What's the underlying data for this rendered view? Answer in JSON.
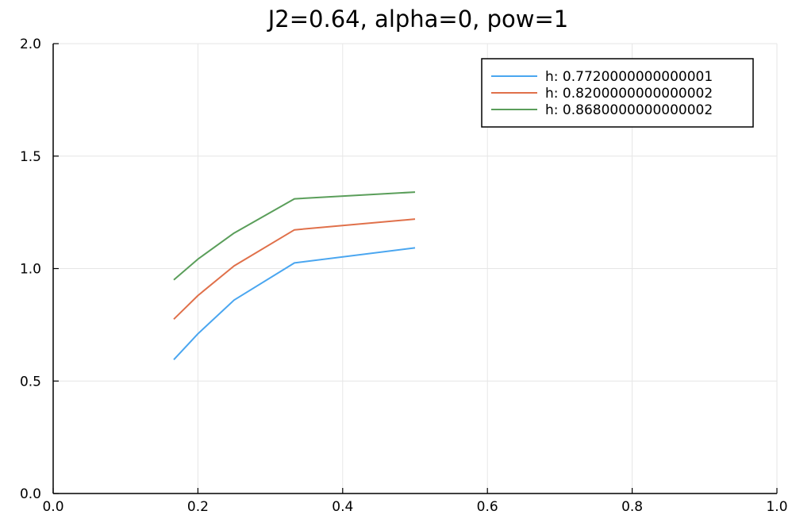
{
  "chart_data": {
    "type": "line",
    "title": "J2=0.64, alpha=0, pow=1",
    "xlabel": "",
    "ylabel": "",
    "xlim": [
      0.0,
      1.0
    ],
    "ylim": [
      0.0,
      2.0
    ],
    "xticks": [
      0.0,
      0.2,
      0.4,
      0.6,
      0.8,
      1.0
    ],
    "xtick_labels": [
      "0.0",
      "0.2",
      "0.4",
      "0.6",
      "0.8",
      "1.0"
    ],
    "yticks": [
      0.0,
      0.5,
      1.0,
      1.5,
      2.0
    ],
    "ytick_labels": [
      "0.0",
      "0.5",
      "1.0",
      "1.5",
      "2.0"
    ],
    "grid": true,
    "legend_position": "top-right",
    "x": [
      0.1667,
      0.2,
      0.25,
      0.3333,
      0.5
    ],
    "series": [
      {
        "name": "h: 0.7720000000000001",
        "color": "#4aa6f0",
        "values": [
          0.595,
          0.71,
          0.86,
          1.025,
          1.092
        ]
      },
      {
        "name": "h: 0.8200000000000002",
        "color": "#e0704a",
        "values": [
          0.775,
          0.88,
          1.012,
          1.172,
          1.22
        ]
      },
      {
        "name": "h: 0.8680000000000002",
        "color": "#5a9e5a",
        "values": [
          0.95,
          1.042,
          1.158,
          1.31,
          1.34
        ]
      }
    ]
  }
}
